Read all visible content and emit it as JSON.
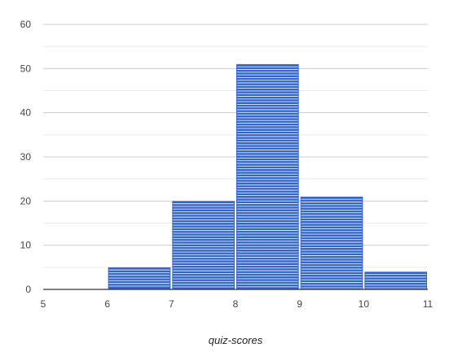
{
  "chart_data": {
    "type": "bar",
    "subtype": "histogram",
    "title": "",
    "xlabel": "quiz-scores",
    "ylabel": "",
    "bins": [
      {
        "start": 5,
        "end": 6,
        "value": 0
      },
      {
        "start": 6,
        "end": 7,
        "value": 5
      },
      {
        "start": 7,
        "end": 8,
        "value": 20
      },
      {
        "start": 8,
        "end": 9,
        "value": 51
      },
      {
        "start": 9,
        "end": 10,
        "value": 21
      },
      {
        "start": 10,
        "end": 11,
        "value": 4
      }
    ],
    "xlim": [
      5,
      11
    ],
    "ylim": [
      0,
      60
    ],
    "x_ticks": [
      "5",
      "6",
      "7",
      "8",
      "9",
      "10",
      "11"
    ],
    "y_ticks": [
      "0",
      "10",
      "20",
      "30",
      "40",
      "50",
      "60"
    ],
    "grid": true,
    "colors": {
      "bar": "#3366cc",
      "stripe": "#ffffff",
      "grid": "#cccccc",
      "minor_grid": "#ebebeb",
      "baseline": "#333333"
    }
  }
}
